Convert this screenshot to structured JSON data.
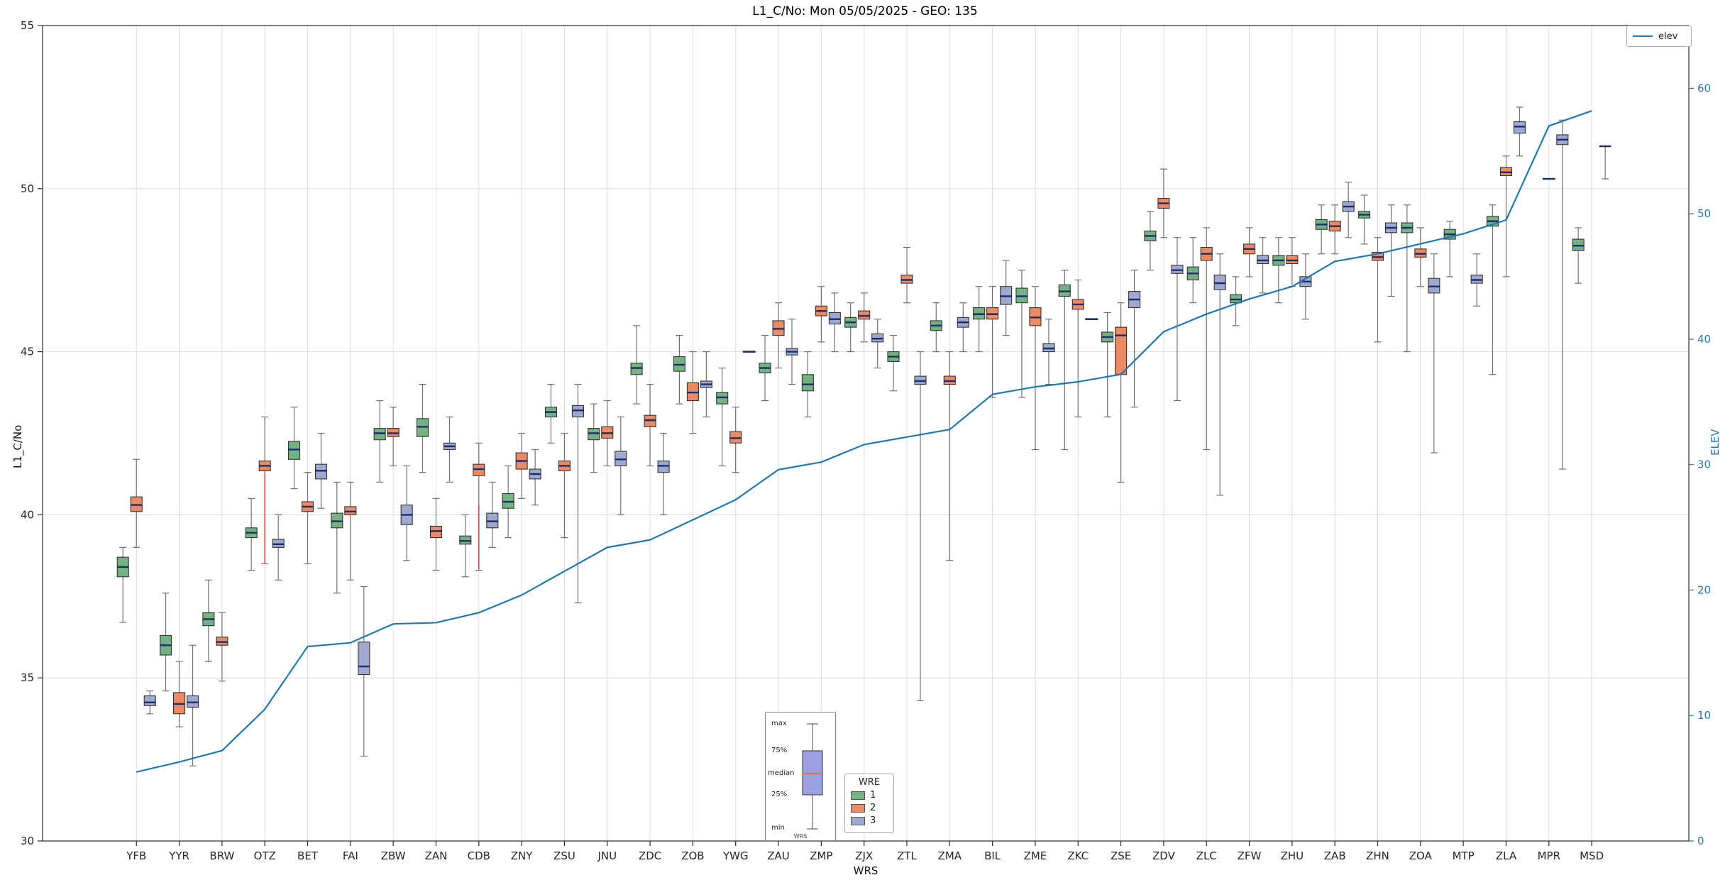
{
  "title": "L1_C/No: Mon 05/05/2025 - GEO: 135",
  "axis_labels": {
    "left": "L1_C/No",
    "right": "ELEV",
    "bottom": "WRS"
  },
  "legend_elev": {
    "label": "elev"
  },
  "legend_wre": {
    "title": "WRE",
    "items": [
      "1",
      "2",
      "3"
    ]
  },
  "inset": {
    "max": "max",
    "p75": "75%",
    "median": "median",
    "p25": "25%",
    "min": "min",
    "axis": "WRS"
  },
  "chart_data": {
    "type": "boxplot",
    "title": "L1_C/No: Mon 05/05/2025 - GEO: 135",
    "xlabel": "WRS",
    "ylabel": "L1_C/No",
    "ylabel_right": "ELEV",
    "ylim": [
      30,
      55
    ],
    "ylim_right": [
      0,
      65
    ],
    "yticks": [
      30,
      35,
      40,
      45,
      50,
      55
    ],
    "yticks_right": [
      0,
      10,
      20,
      30,
      40,
      50,
      60
    ],
    "grid": true,
    "categories": [
      "YFB",
      "YYR",
      "BRW",
      "OTZ",
      "BET",
      "FAI",
      "ZBW",
      "ZAN",
      "CDB",
      "ZNY",
      "ZSU",
      "JNU",
      "ZDC",
      "ZOB",
      "YWG",
      "ZAU",
      "ZMP",
      "ZJX",
      "ZTL",
      "ZMA",
      "BIL",
      "ZME",
      "ZKC",
      "ZSE",
      "ZDV",
      "ZLC",
      "ZFW",
      "ZHU",
      "ZAB",
      "ZHN",
      "ZOA",
      "MTP",
      "ZLA",
      "MPR",
      "MSD"
    ],
    "box_format": [
      "whisker_min",
      "q1",
      "median",
      "q3",
      "whisker_max"
    ],
    "series": [
      {
        "name": "1",
        "color": "#74b283",
        "boxes": [
          [
            36.7,
            38.1,
            38.4,
            38.7,
            39.0
          ],
          [
            34.6,
            35.7,
            36.0,
            36.3,
            37.6
          ],
          [
            35.5,
            36.6,
            36.8,
            37.0,
            38.0
          ],
          [
            38.3,
            39.3,
            39.45,
            39.6,
            40.5
          ],
          [
            40.8,
            41.7,
            42.0,
            42.25,
            43.3
          ],
          [
            37.6,
            39.6,
            39.8,
            40.05,
            41.0
          ],
          [
            41.0,
            42.3,
            42.5,
            42.65,
            43.5
          ],
          [
            41.3,
            42.4,
            42.7,
            42.95,
            44.0
          ],
          [
            38.1,
            39.1,
            39.2,
            39.35,
            40.0
          ],
          [
            39.3,
            40.2,
            40.4,
            40.65,
            41.5
          ],
          [
            42.2,
            43.0,
            43.15,
            43.3,
            44.0
          ],
          [
            41.3,
            42.3,
            42.5,
            42.65,
            43.4
          ],
          [
            43.4,
            44.3,
            44.5,
            44.65,
            45.8
          ],
          [
            43.4,
            44.4,
            44.6,
            44.85,
            45.5
          ],
          [
            41.5,
            43.4,
            43.6,
            43.75,
            44.5
          ],
          [
            43.5,
            44.35,
            44.5,
            44.65,
            45.5
          ],
          [
            43.0,
            43.8,
            44.0,
            44.3,
            45.0
          ],
          [
            45.0,
            45.75,
            45.9,
            46.05,
            46.5
          ],
          [
            43.8,
            44.7,
            44.85,
            45.0,
            45.5
          ],
          [
            45.0,
            45.65,
            45.8,
            45.95,
            46.5
          ],
          [
            45.0,
            46.0,
            46.15,
            46.35,
            47.0
          ],
          [
            43.6,
            46.5,
            46.7,
            46.95,
            47.5
          ],
          [
            42.0,
            46.7,
            46.85,
            47.05,
            47.5
          ],
          [
            43.0,
            45.3,
            45.45,
            45.6,
            46.2
          ],
          [
            47.5,
            48.4,
            48.55,
            48.7,
            49.3
          ],
          [
            46.5,
            47.2,
            47.4,
            47.6,
            48.5
          ],
          [
            45.8,
            46.5,
            46.6,
            46.75,
            47.3
          ],
          [
            46.5,
            47.65,
            47.8,
            47.95,
            48.5
          ],
          [
            48.0,
            48.75,
            48.9,
            49.05,
            49.5
          ],
          [
            48.3,
            49.1,
            49.2,
            49.3,
            49.8
          ],
          [
            45.0,
            48.65,
            48.8,
            48.95,
            49.5
          ],
          [
            47.3,
            48.45,
            48.6,
            48.75,
            49.0
          ],
          [
            44.3,
            48.85,
            49.0,
            49.15,
            49.5
          ],
          null,
          [
            47.1,
            48.1,
            48.25,
            48.45,
            48.8
          ]
        ]
      },
      {
        "name": "2",
        "color": "#ec8a64",
        "boxes": [
          [
            39.0,
            40.1,
            40.3,
            40.55,
            41.7
          ],
          [
            33.5,
            33.9,
            34.2,
            34.55,
            35.5
          ],
          [
            34.9,
            36.0,
            36.1,
            36.25,
            37.0
          ],
          [
            38.5,
            41.35,
            41.5,
            41.65,
            43.0
          ],
          [
            38.5,
            40.1,
            40.25,
            40.4,
            41.3
          ],
          [
            38.0,
            40.0,
            40.1,
            40.25,
            41.0
          ],
          [
            41.5,
            42.4,
            42.5,
            42.65,
            43.3
          ],
          [
            38.3,
            39.3,
            39.5,
            39.65,
            40.5
          ],
          [
            38.3,
            41.2,
            41.4,
            41.55,
            42.2
          ],
          [
            40.5,
            41.4,
            41.65,
            41.9,
            42.5
          ],
          [
            39.3,
            41.35,
            41.5,
            41.65,
            42.5
          ],
          [
            41.5,
            42.35,
            42.5,
            42.7,
            43.5
          ],
          [
            41.5,
            42.7,
            42.9,
            43.05,
            44.0
          ],
          [
            42.5,
            43.5,
            43.75,
            44.05,
            45.0
          ],
          [
            41.3,
            42.2,
            42.35,
            42.55,
            43.3
          ],
          [
            44.5,
            45.5,
            45.7,
            45.95,
            46.5
          ],
          [
            45.3,
            46.1,
            46.25,
            46.4,
            47.0
          ],
          [
            45.3,
            46.0,
            46.1,
            46.25,
            46.8
          ],
          [
            46.5,
            47.1,
            47.2,
            47.35,
            48.2
          ],
          [
            38.6,
            44.0,
            44.1,
            44.25,
            45.0
          ],
          [
            43.6,
            46.0,
            46.15,
            46.35,
            47.0
          ],
          [
            42.0,
            45.8,
            46.05,
            46.35,
            47.0
          ],
          [
            43.0,
            46.3,
            46.45,
            46.6,
            47.2
          ],
          [
            41.0,
            44.3,
            45.5,
            45.75,
            46.5
          ],
          [
            48.5,
            49.4,
            49.55,
            49.7,
            50.6
          ],
          [
            42.0,
            47.8,
            48.0,
            48.2,
            48.8
          ],
          [
            47.3,
            48.0,
            48.15,
            48.3,
            48.8
          ],
          [
            47.0,
            47.7,
            47.8,
            47.95,
            48.5
          ],
          [
            48.0,
            48.7,
            48.85,
            49.0,
            49.5
          ],
          [
            45.3,
            47.8,
            47.9,
            48.05,
            48.5
          ],
          [
            47.0,
            47.9,
            48.0,
            48.15,
            48.8
          ],
          null,
          [
            47.3,
            50.4,
            50.5,
            50.65,
            51.0
          ],
          [
            50.3,
            50.3,
            50.3,
            50.3,
            50.3
          ],
          null
        ]
      },
      {
        "name": "3",
        "color": "#9fa9ce",
        "boxes": [
          [
            33.9,
            34.15,
            34.25,
            34.45,
            34.6
          ],
          [
            32.3,
            34.1,
            34.25,
            34.45,
            36.0
          ],
          null,
          [
            38.0,
            39.0,
            39.1,
            39.25,
            40.0
          ],
          [
            40.2,
            41.1,
            41.35,
            41.55,
            42.5
          ],
          [
            32.6,
            35.1,
            35.35,
            36.1,
            37.8
          ],
          [
            38.6,
            39.7,
            40.0,
            40.3,
            41.5
          ],
          [
            41.0,
            42.0,
            42.1,
            42.2,
            43.0
          ],
          [
            39.0,
            39.6,
            39.8,
            40.05,
            41.0
          ],
          [
            40.3,
            41.1,
            41.25,
            41.4,
            42.0
          ],
          [
            37.3,
            43.0,
            43.2,
            43.35,
            44.0
          ],
          [
            40.0,
            41.5,
            41.7,
            41.95,
            43.0
          ],
          [
            40.0,
            41.3,
            41.5,
            41.65,
            42.5
          ],
          [
            43.0,
            43.9,
            44.0,
            44.1,
            45.0
          ],
          [
            45.0,
            45.0,
            45.0,
            45.0,
            45.0
          ],
          [
            44.0,
            44.9,
            45.0,
            45.1,
            46.0
          ],
          [
            45.0,
            45.85,
            46.0,
            46.2,
            46.8
          ],
          [
            44.5,
            45.3,
            45.4,
            45.55,
            46.0
          ],
          [
            34.3,
            44.0,
            44.1,
            44.25,
            45.0
          ],
          [
            45.0,
            45.75,
            45.9,
            46.05,
            46.5
          ],
          [
            45.5,
            46.45,
            46.7,
            47.0,
            47.8
          ],
          [
            44.0,
            45.0,
            45.1,
            45.25,
            46.0
          ],
          [
            46.0,
            46.0,
            46.0,
            46.0,
            46.0
          ],
          [
            43.3,
            46.35,
            46.6,
            46.85,
            47.5
          ],
          [
            43.5,
            47.4,
            47.5,
            47.65,
            48.5
          ],
          [
            40.6,
            46.9,
            47.1,
            47.35,
            48.0
          ],
          [
            46.8,
            47.7,
            47.8,
            47.95,
            48.5
          ],
          [
            46.0,
            47.0,
            47.15,
            47.3,
            48.0
          ],
          [
            48.5,
            49.3,
            49.45,
            49.6,
            50.2
          ],
          [
            46.7,
            48.65,
            48.8,
            48.95,
            49.5
          ],
          [
            41.9,
            46.8,
            47.0,
            47.25,
            48.0
          ],
          [
            46.4,
            47.1,
            47.2,
            47.35,
            48.0
          ],
          [
            51.0,
            51.7,
            51.9,
            52.05,
            52.5
          ],
          [
            41.4,
            51.35,
            51.5,
            51.65,
            52.1
          ],
          [
            50.3,
            51.3,
            51.3,
            51.3,
            51.3
          ]
        ]
      }
    ],
    "red_marks": [
      {
        "cat": "OTZ",
        "series": "2",
        "lo": 38.5,
        "hi": 41.3
      },
      {
        "cat": "CDB",
        "series": "2",
        "lo": 38.3,
        "hi": 40.3
      }
    ],
    "line_series": {
      "name": "elev",
      "color": "#1f77b4",
      "axis": "right",
      "values": [
        5.5,
        6.3,
        7.2,
        10.5,
        15.5,
        15.8,
        17.3,
        17.4,
        18.2,
        19.6,
        21.5,
        23.4,
        24.0,
        25.6,
        27.2,
        29.6,
        30.2,
        31.6,
        32.2,
        32.8,
        35.6,
        36.2,
        36.6,
        37.2,
        40.6,
        42.0,
        43.2,
        44.2,
        46.2,
        46.8,
        47.6,
        48.4,
        49.5,
        57.0,
        58.2
      ]
    },
    "style": {
      "grid": "#dcdcdc",
      "spine": "#2b2b2b",
      "median": "#1c2e6b",
      "whisker": "#707070",
      "tick_text": "#262626",
      "right_axis": "#1f77b4",
      "red": "#d03a3a",
      "inset_box_fill": "#9aa0e0",
      "inset_median": "#e2713d"
    }
  }
}
